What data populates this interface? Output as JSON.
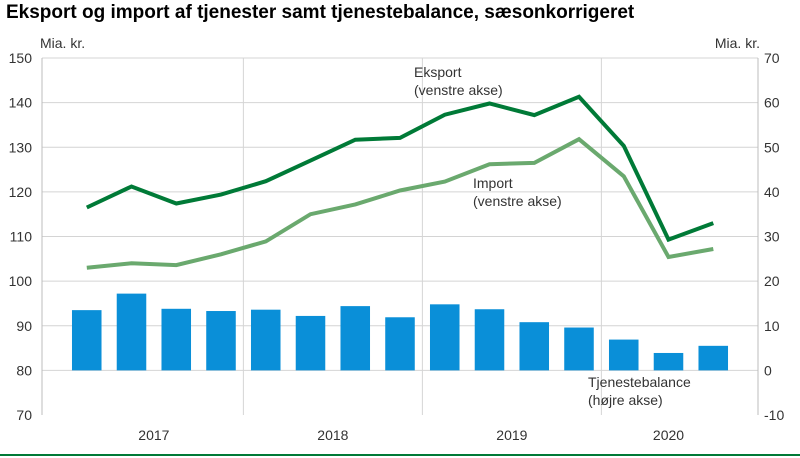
{
  "chart_data": {
    "type": "bar+line",
    "title": "Eksport og import af tjenester samt tjenestebalance, sæsonkorrigeret",
    "left_axis": {
      "unit_label": "Mia. kr.",
      "ylim": [
        70,
        150
      ],
      "ticks": [
        "70",
        "80",
        "90",
        "100",
        "110",
        "120",
        "130",
        "140",
        "150"
      ]
    },
    "right_axis": {
      "unit_label": "Mia. kr.",
      "ylim": [
        -10,
        70
      ],
      "ticks": [
        "-10",
        "0",
        "10",
        "20",
        "30",
        "40",
        "50",
        "60",
        "70"
      ]
    },
    "year_labels": [
      "2017",
      "2018",
      "2019",
      "2020"
    ],
    "quarters": [
      "2017K1",
      "2017K2",
      "2017K3",
      "2017K4",
      "2018K1",
      "2018K2",
      "2018K3",
      "2018K4",
      "2019K1",
      "2019K2",
      "2019K3",
      "2019K4",
      "2020K1",
      "2020K2",
      "2020K3"
    ],
    "series": [
      {
        "name": "Eksport",
        "axis": "left",
        "kind": "line",
        "color": "#007a37",
        "values": [
          116.5,
          121.2,
          117.4,
          119.4,
          122.4,
          127.0,
          131.7,
          132.1,
          137.3,
          139.8,
          137.2,
          141.3,
          130.3,
          109.3,
          113.0
        ]
      },
      {
        "name": "Import",
        "axis": "left",
        "kind": "line",
        "color": "#6aa96e",
        "values": [
          103.0,
          104.0,
          103.6,
          106.0,
          108.9,
          115.0,
          117.2,
          120.3,
          122.3,
          126.2,
          126.5,
          131.8,
          123.5,
          105.4,
          107.2
        ]
      },
      {
        "name": "Tjenestebalance",
        "axis": "right",
        "kind": "bar",
        "color": "#0a8fd8",
        "values": [
          13.5,
          17.2,
          13.8,
          13.3,
          13.6,
          12.2,
          14.4,
          11.9,
          14.8,
          13.7,
          10.8,
          9.6,
          6.9,
          3.9,
          5.5
        ]
      }
    ],
    "annotations": {
      "eksport": [
        "Eksport",
        "(venstre akse)"
      ],
      "import": [
        "Import",
        "(venstre akse)"
      ],
      "balance": [
        "Tjenestebalance",
        "(højre akse)"
      ]
    },
    "grid": true
  }
}
